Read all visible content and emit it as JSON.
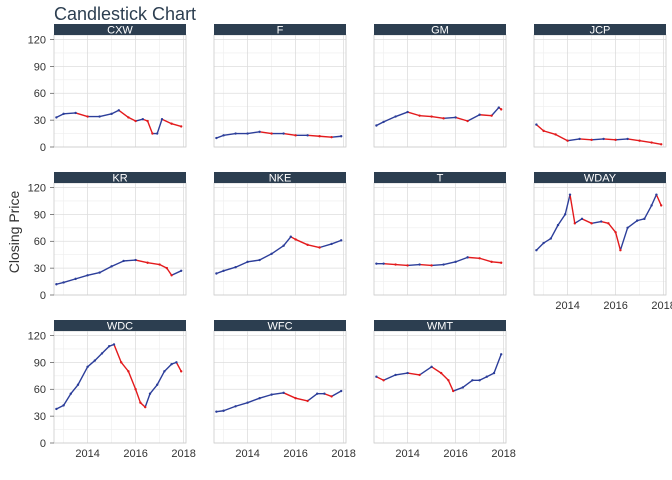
{
  "title": "Candlestick Chart",
  "colors": {
    "strip": "#2c3e50",
    "up": "#2c3e9a",
    "down": "#e31a1c",
    "grid": "#dddddd",
    "border": "#cccccc"
  },
  "chart_data": {
    "type": "line",
    "title": "Candlestick Chart",
    "ylabel": "Closing Price",
    "xlabel": "",
    "xlim": [
      2012.6,
      2018.1
    ],
    "ylim": [
      0,
      125
    ],
    "x_ticks": [
      "2014",
      "2016",
      "2018"
    ],
    "y_ticks": [
      "0",
      "30",
      "60",
      "90",
      "120"
    ],
    "grid": true,
    "facets": [
      {
        "name": "CXW",
        "x": [
          2012.7,
          2013.0,
          2013.5,
          2014.0,
          2014.5,
          2015.0,
          2015.3,
          2015.7,
          2016.0,
          2016.3,
          2016.5,
          2016.7,
          2016.9,
          2017.1,
          2017.5,
          2017.9
        ],
        "values": [
          33,
          37,
          38,
          34,
          34,
          37,
          41,
          33,
          29,
          31,
          29,
          15,
          15,
          31,
          26,
          23
        ]
      },
      {
        "name": "F",
        "x": [
          2012.7,
          2013.0,
          2013.5,
          2014.0,
          2014.5,
          2015.0,
          2015.5,
          2016.0,
          2016.5,
          2017.0,
          2017.5,
          2017.9
        ],
        "values": [
          10,
          13,
          15,
          15,
          17,
          15,
          15,
          13,
          13,
          12,
          11,
          12
        ]
      },
      {
        "name": "GM",
        "x": [
          2012.7,
          2013.0,
          2013.5,
          2014.0,
          2014.5,
          2015.0,
          2015.5,
          2016.0,
          2016.5,
          2017.0,
          2017.5,
          2017.8,
          2017.9
        ],
        "values": [
          24,
          28,
          34,
          39,
          35,
          34,
          32,
          33,
          29,
          36,
          35,
          44,
          42
        ]
      },
      {
        "name": "JCP",
        "x": [
          2012.7,
          2013.0,
          2013.5,
          2014.0,
          2014.5,
          2015.0,
          2015.5,
          2016.0,
          2016.5,
          2017.0,
          2017.5,
          2017.9
        ],
        "values": [
          25,
          18,
          14,
          7,
          9,
          8,
          9,
          8,
          9,
          7,
          5,
          3
        ]
      },
      {
        "name": "KR",
        "x": [
          2012.7,
          2013.0,
          2013.5,
          2014.0,
          2014.5,
          2015.0,
          2015.5,
          2016.0,
          2016.5,
          2017.0,
          2017.3,
          2017.5,
          2017.9
        ],
        "values": [
          12,
          14,
          18,
          22,
          25,
          32,
          38,
          39,
          36,
          34,
          30,
          22,
          27
        ]
      },
      {
        "name": "NKE",
        "x": [
          2012.7,
          2013.0,
          2013.5,
          2014.0,
          2014.5,
          2015.0,
          2015.5,
          2015.8,
          2016.0,
          2016.5,
          2017.0,
          2017.5,
          2017.9
        ],
        "values": [
          24,
          27,
          31,
          37,
          39,
          46,
          55,
          65,
          62,
          56,
          53,
          57,
          61
        ]
      },
      {
        "name": "T",
        "x": [
          2012.7,
          2013.0,
          2013.5,
          2014.0,
          2014.5,
          2015.0,
          2015.5,
          2016.0,
          2016.5,
          2017.0,
          2017.5,
          2017.9
        ],
        "values": [
          35,
          35,
          34,
          33,
          34,
          33,
          34,
          37,
          42,
          41,
          37,
          36
        ]
      },
      {
        "name": "WDAY",
        "x": [
          2012.7,
          2013.0,
          2013.3,
          2013.6,
          2013.9,
          2014.1,
          2014.3,
          2014.6,
          2015.0,
          2015.4,
          2015.7,
          2016.0,
          2016.2,
          2016.5,
          2016.9,
          2017.2,
          2017.5,
          2017.7,
          2017.9
        ],
        "values": [
          50,
          58,
          63,
          78,
          90,
          112,
          80,
          85,
          80,
          82,
          80,
          70,
          50,
          75,
          83,
          85,
          100,
          112,
          100
        ]
      },
      {
        "name": "WDC",
        "x": [
          2012.7,
          2013.0,
          2013.3,
          2013.6,
          2014.0,
          2014.3,
          2014.6,
          2014.9,
          2015.1,
          2015.4,
          2015.7,
          2016.0,
          2016.2,
          2016.4,
          2016.6,
          2016.9,
          2017.2,
          2017.5,
          2017.7,
          2017.9
        ],
        "values": [
          38,
          42,
          55,
          65,
          85,
          92,
          100,
          108,
          110,
          90,
          80,
          60,
          45,
          40,
          55,
          65,
          80,
          88,
          90,
          80
        ]
      },
      {
        "name": "WFC",
        "x": [
          2012.7,
          2013.0,
          2013.5,
          2014.0,
          2014.5,
          2015.0,
          2015.5,
          2016.0,
          2016.5,
          2016.9,
          2017.2,
          2017.5,
          2017.9
        ],
        "values": [
          35,
          36,
          41,
          45,
          50,
          54,
          56,
          50,
          47,
          55,
          55,
          52,
          58
        ]
      },
      {
        "name": "WMT",
        "x": [
          2012.7,
          2013.0,
          2013.5,
          2014.0,
          2014.5,
          2015.0,
          2015.4,
          2015.7,
          2015.9,
          2016.3,
          2016.7,
          2017.0,
          2017.3,
          2017.6,
          2017.9
        ],
        "values": [
          74,
          70,
          76,
          78,
          76,
          85,
          78,
          70,
          58,
          62,
          70,
          70,
          74,
          78,
          99
        ]
      }
    ]
  }
}
